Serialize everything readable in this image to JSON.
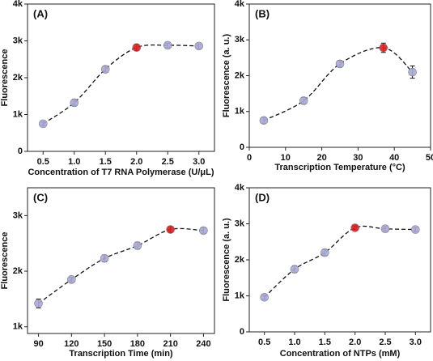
{
  "chart_data": [
    {
      "type": "scatter",
      "title": "(A)",
      "xlabel": "Concentration of T7 RNA Polymerase (U/μL)",
      "ylabel": "Fluorescence",
      "x": [
        0.5,
        1.0,
        1.5,
        2.0,
        2.5,
        3.0
      ],
      "values": [
        750,
        1320,
        2230,
        2820,
        2880,
        2860
      ],
      "errors": [
        50,
        80,
        80,
        80,
        60,
        60
      ],
      "colors": [
        "#a9a9d8",
        "#a9a9d8",
        "#a9a9d8",
        "#e01e1e",
        "#a9a9d8",
        "#a9a9d8"
      ],
      "xlim": [
        0.25,
        3.25
      ],
      "xticks": [
        0.5,
        {
          "value": 1,
          "label": "1.0"
        },
        1.5,
        {
          "value": 2,
          "label": "2.0"
        },
        2.5,
        {
          "value": 3,
          "label": "3.0"
        }
      ],
      "ylim": [
        0,
        4000
      ],
      "yticks": [
        0,
        {
          "value": 1000,
          "label": "1k"
        },
        {
          "value": 2000,
          "label": "2k"
        },
        {
          "value": 3000,
          "label": "3k"
        },
        {
          "value": 4000,
          "label": "4k"
        }
      ]
    },
    {
      "type": "scatter",
      "title": "(B)",
      "xlabel": "Transcription Temperature (°C)",
      "ylabel": "Fluorescence (a. u.)",
      "x": [
        4,
        15,
        25,
        37,
        45
      ],
      "values": [
        750,
        1300,
        2330,
        2780,
        2100
      ],
      "errors": [
        80,
        90,
        90,
        130,
        170
      ],
      "colors": [
        "#a9a9d8",
        "#a9a9d8",
        "#a9a9d8",
        "#e01e1e",
        "#a9a9d8"
      ],
      "xlim": [
        0,
        50
      ],
      "xticks": [
        0,
        10,
        20,
        30,
        40,
        50
      ],
      "ylim": [
        0,
        4000
      ],
      "yticks": [
        0,
        {
          "value": 1000,
          "label": "1k"
        },
        {
          "value": 2000,
          "label": "2k"
        },
        {
          "value": 3000,
          "label": "3k"
        },
        {
          "value": 4000,
          "label": "4k"
        }
      ]
    },
    {
      "type": "scatter",
      "title": "(C)",
      "xlabel": "Transcription Time (min)",
      "ylabel": "Fluorescence",
      "x": [
        90,
        120,
        150,
        180,
        210,
        240
      ],
      "values": [
        1420,
        1850,
        2230,
        2460,
        2750,
        2730
      ],
      "errors": [
        80,
        40,
        60,
        60,
        50,
        50
      ],
      "colors": [
        "#a9a9d8",
        "#a9a9d8",
        "#a9a9d8",
        "#a9a9d8",
        "#e01e1e",
        "#a9a9d8"
      ],
      "xlim": [
        80,
        250
      ],
      "xticks": [
        90,
        120,
        150,
        180,
        210,
        240
      ],
      "ylim": [
        880,
        3500
      ],
      "yticks": [
        {
          "value": 1000,
          "label": "1k"
        },
        {
          "value": 2000,
          "label": "2k"
        },
        {
          "value": 3000,
          "label": "3k"
        }
      ]
    },
    {
      "type": "scatter",
      "title": "(D)",
      "xlabel": "Concentration of NTPs (mM)",
      "ylabel": "Fluorescence (a. u.)",
      "x": [
        0.5,
        1.0,
        1.5,
        2.0,
        2.5,
        3.0
      ],
      "values": [
        960,
        1740,
        2200,
        2890,
        2860,
        2840
      ],
      "errors": [
        60,
        90,
        80,
        50,
        60,
        60
      ],
      "colors": [
        "#a9a9d8",
        "#a9a9d8",
        "#a9a9d8",
        "#e01e1e",
        "#a9a9d8",
        "#a9a9d8"
      ],
      "xlim": [
        0.25,
        3.25
      ],
      "xticks": [
        0.5,
        {
          "value": 1,
          "label": "1.0"
        },
        1.5,
        {
          "value": 2,
          "label": "2.0"
        },
        2.5,
        {
          "value": 3,
          "label": "3.0"
        }
      ],
      "ylim": [
        0,
        4000
      ],
      "yticks": [
        0,
        {
          "value": 1000,
          "label": "1k"
        },
        {
          "value": 2000,
          "label": "2k"
        },
        {
          "value": 3000,
          "label": "3k"
        },
        {
          "value": 4000,
          "label": "4k"
        }
      ]
    }
  ]
}
